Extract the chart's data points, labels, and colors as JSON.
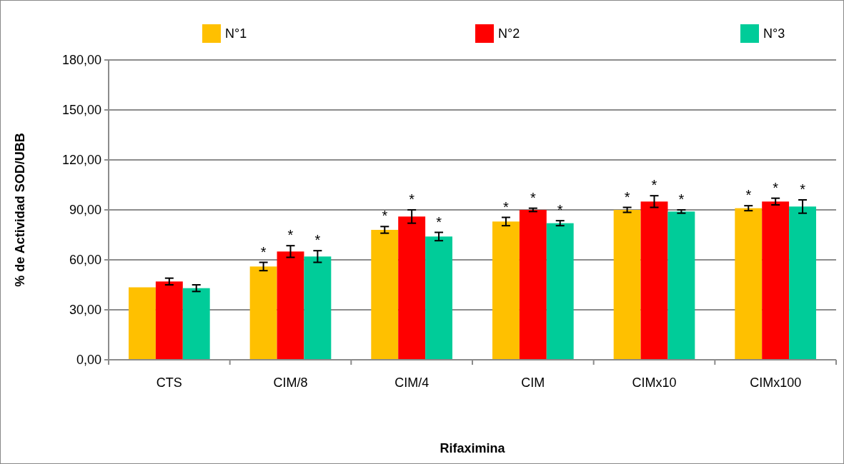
{
  "chart_data": {
    "type": "bar",
    "xlabel": "Rifaximina",
    "ylabel": "% de Actividad SOD/UBB",
    "categories": [
      "CTS",
      "CIM/8",
      "CIM/4",
      "CIM",
      "CIMx10",
      "CIMx100"
    ],
    "series": [
      {
        "name": "N°1",
        "color": "#ffc000",
        "values": [
          43.5,
          56,
          78,
          83,
          90,
          91
        ],
        "errors": [
          null,
          2.5,
          2,
          2.5,
          1.5,
          1.5
        ],
        "value_labels": [
          null,
          "*",
          "*",
          "*",
          "*",
          "*"
        ]
      },
      {
        "name": "N°2",
        "color": "#ff0000",
        "values": [
          47,
          65,
          86,
          90,
          95,
          95
        ],
        "errors": [
          2,
          3.5,
          4,
          1,
          3.5,
          2
        ],
        "value_labels": [
          null,
          "*",
          "*",
          "*",
          "*",
          "*"
        ]
      },
      {
        "name": "N°3",
        "color": "#00cc99",
        "values": [
          43,
          62,
          74,
          82,
          89,
          92
        ],
        "errors": [
          2,
          3.5,
          2.5,
          1.5,
          1,
          4
        ],
        "value_labels": [
          null,
          "*",
          "*",
          "*",
          "*",
          "*"
        ]
      }
    ],
    "ylim": [
      0,
      180
    ],
    "yticks": [
      {
        "value": 0,
        "label": "0,00"
      },
      {
        "value": 30,
        "label": "30,00"
      },
      {
        "value": 60,
        "label": "60,00"
      },
      {
        "value": 90,
        "label": "90,00"
      },
      {
        "value": 120,
        "label": "120,00"
      },
      {
        "value": 150,
        "label": "150,00"
      },
      {
        "value": 180,
        "label": "180,00"
      }
    ],
    "grid": "y",
    "legend": "top"
  }
}
